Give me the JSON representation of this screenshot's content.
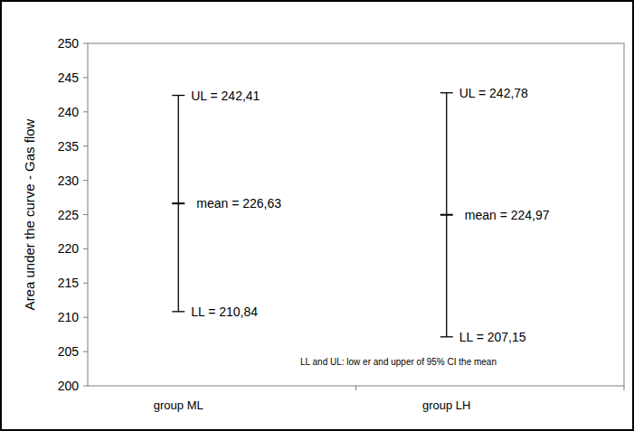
{
  "chart_data": {
    "type": "errorbar",
    "y_label": "Area under the curve - Gas flow",
    "categories": [
      "group ML",
      "group LH"
    ],
    "values": [
      226.63,
      224.97
    ],
    "value_labels": [
      "mean = 226,63",
      "mean = 224,97"
    ],
    "lower": [
      210.84,
      207.15
    ],
    "lower_labels": [
      "LL = 210,84",
      "LL = 207,15"
    ],
    "upper": [
      242.41,
      242.78
    ],
    "upper_labels": [
      "UL = 242,41",
      "UL = 242,78"
    ],
    "note": "LL and UL: low er and upper of 95% CI the mean",
    "data_labels": true,
    "grid": false,
    "color": "#000000",
    "ylim": [
      200,
      250
    ],
    "yticks": [
      200,
      205,
      210,
      215,
      220,
      225,
      230,
      235,
      240,
      245,
      250
    ]
  }
}
